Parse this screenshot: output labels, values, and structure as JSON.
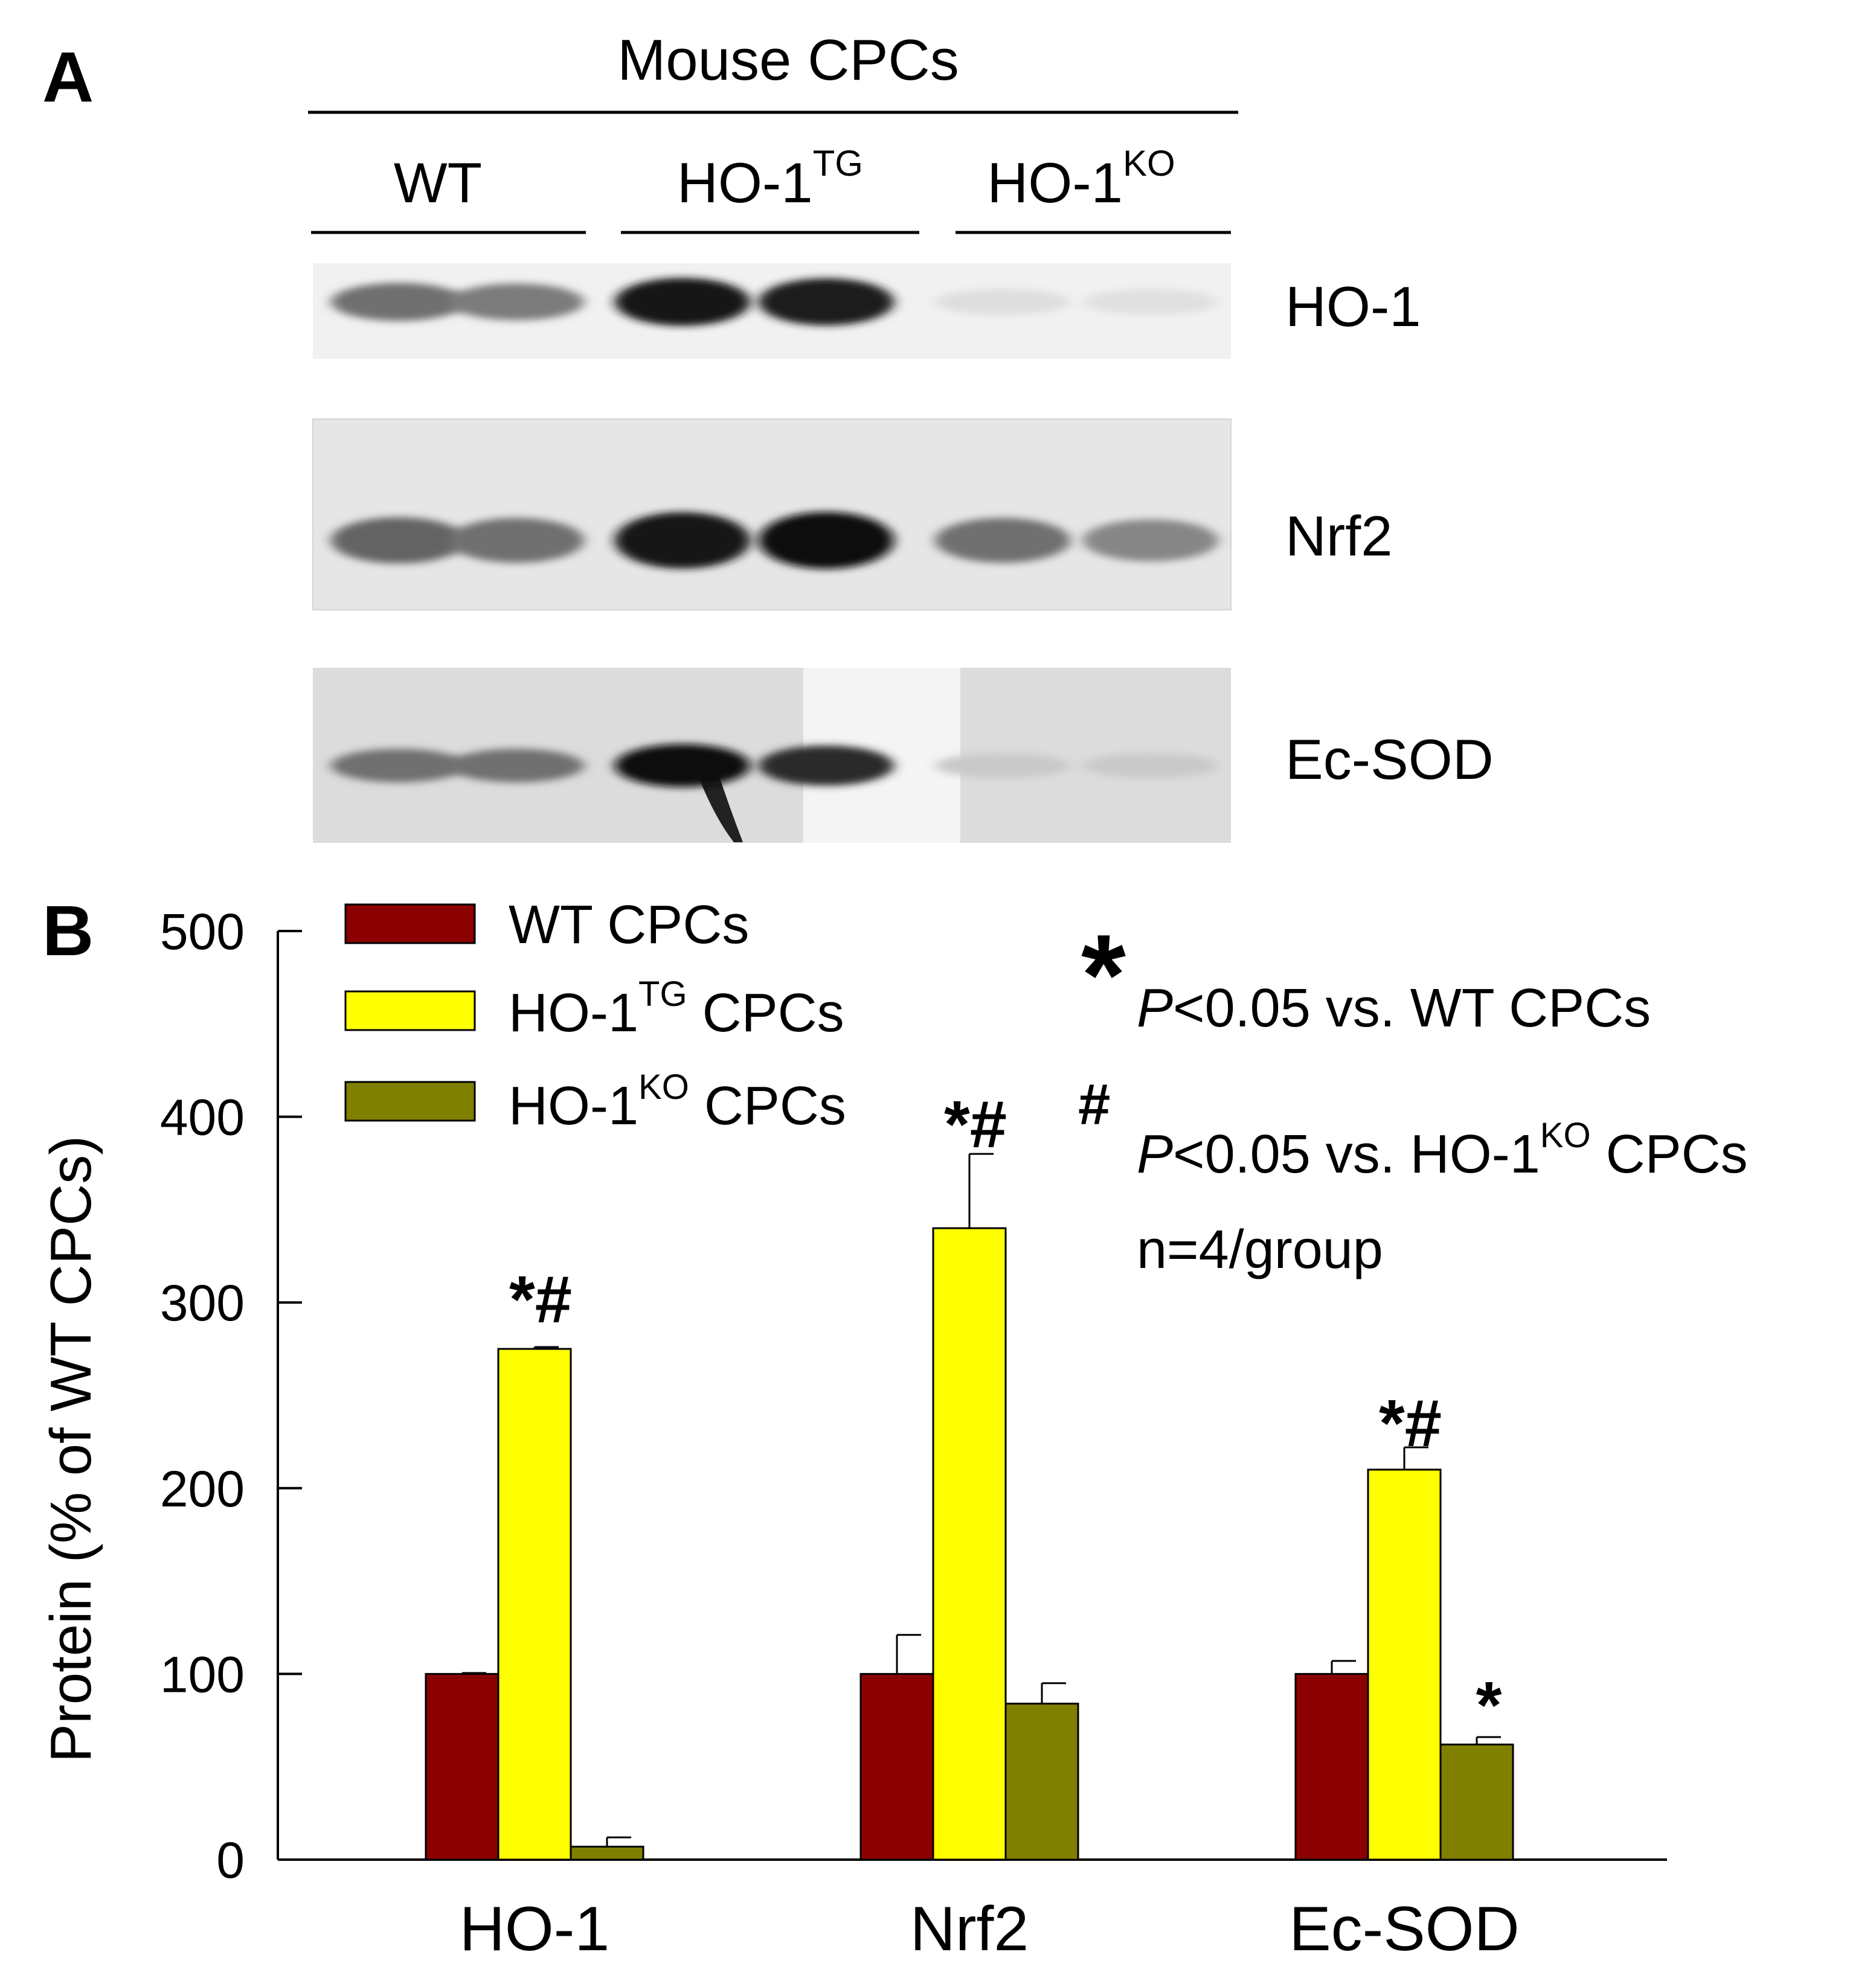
{
  "panel_a": {
    "label": "A",
    "title": "Mouse CPCs",
    "groups": [
      {
        "base": "WT",
        "sup": ""
      },
      {
        "base": "HO-1",
        "sup": "TG"
      },
      {
        "base": "HO-1",
        "sup": "KO"
      }
    ],
    "blots": [
      {
        "label": "HO-1",
        "intensity": [
          0.55,
          0.5,
          0.95,
          0.92,
          0.06,
          0.05
        ]
      },
      {
        "label": "Nrf2",
        "intensity": [
          0.6,
          0.55,
          0.95,
          0.97,
          0.55,
          0.45
        ]
      },
      {
        "label": "Ec-SOD",
        "intensity": [
          0.55,
          0.55,
          0.98,
          0.85,
          0.15,
          0.15
        ]
      }
    ]
  },
  "panel_b": {
    "label": "B",
    "legend": [
      {
        "base": "WT",
        "sup": "",
        "suffix": " CPCs",
        "color": "#8B0000"
      },
      {
        "base": "HO-1",
        "sup": "TG",
        "suffix": " CPCs",
        "color": "#FFFF00"
      },
      {
        "base": "HO-1",
        "sup": "KO",
        "suffix": " CPCs",
        "color": "#808000"
      }
    ],
    "notes": {
      "star_symbol": "*",
      "star_italic": "P",
      "star_text": "<0.05 vs. WT CPCs",
      "hash_symbol": "#",
      "hash_italic": "P",
      "hash_text": "<0.05 vs. HO-1",
      "hash_sup": "KO",
      "hash_suffix": " CPCs",
      "n_text": "n=4/group"
    },
    "significance": [
      [
        "*#",
        "*#",
        "*#"
      ],
      [
        "",
        "",
        "*"
      ]
    ]
  },
  "chart_data": {
    "type": "bar",
    "categories": [
      "HO-1",
      "Nrf2",
      "Ec-SOD"
    ],
    "series": [
      {
        "name": "WT CPCs",
        "values": [
          100,
          100,
          100
        ],
        "errors": [
          0.5,
          21,
          7
        ]
      },
      {
        "name": "HO-1TG CPCs",
        "values": [
          275,
          340,
          210
        ],
        "errors": [
          1,
          40,
          12
        ]
      },
      {
        "name": "HO-1KO CPCs",
        "values": [
          7,
          84,
          62
        ],
        "errors": [
          5,
          11,
          4
        ]
      }
    ],
    "ylabel": "Protein (% of WT CPCs)",
    "ylim": [
      0,
      500
    ],
    "yticks": [
      0,
      100,
      200,
      300,
      400,
      500
    ],
    "colors": [
      "#8B0000",
      "#FFFF00",
      "#808000"
    ],
    "annotations": [
      "*#",
      "*#",
      "*#",
      "*"
    ],
    "grid": false,
    "legend": "top-left"
  }
}
